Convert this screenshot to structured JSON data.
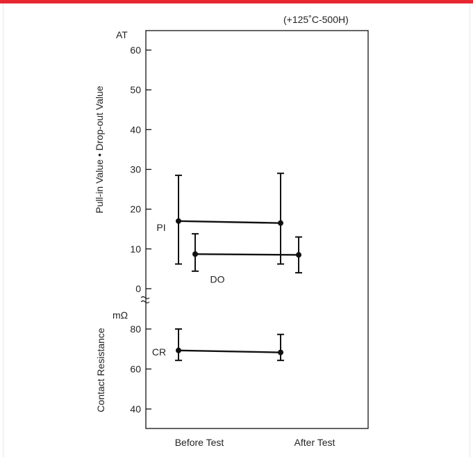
{
  "colors": {
    "accent": "#e8262f",
    "ink": "#111111"
  },
  "chart_data": {
    "type": "scatter",
    "condition": "(+125˚C-500H)",
    "categories": [
      "Before Test",
      "After Test"
    ],
    "upper": {
      "unit": "AT",
      "ylabel": "Pull-in Value • Drop-out Value",
      "ylim": [
        0,
        60
      ],
      "ticks": [
        "0",
        "10",
        "20",
        "30",
        "40",
        "50",
        "60"
      ],
      "series": [
        {
          "name": "PI",
          "mean": [
            17,
            16.5
          ],
          "max": [
            28.5,
            29
          ],
          "min": [
            6.2,
            6.2
          ]
        },
        {
          "name": "DO",
          "mean": [
            8.7,
            8.5
          ],
          "max": [
            13.8,
            13
          ],
          "min": [
            4.4,
            4
          ]
        }
      ]
    },
    "lower": {
      "unit": "mΩ",
      "ylabel": "Contact Resistance",
      "ylim": [
        40,
        80
      ],
      "ticks": [
        "40",
        "60",
        "80"
      ],
      "series": [
        {
          "name": "CR",
          "mean": [
            69.3,
            68.3
          ],
          "max": [
            80,
            77.3
          ],
          "min": [
            64.3,
            64.3
          ]
        }
      ]
    }
  }
}
